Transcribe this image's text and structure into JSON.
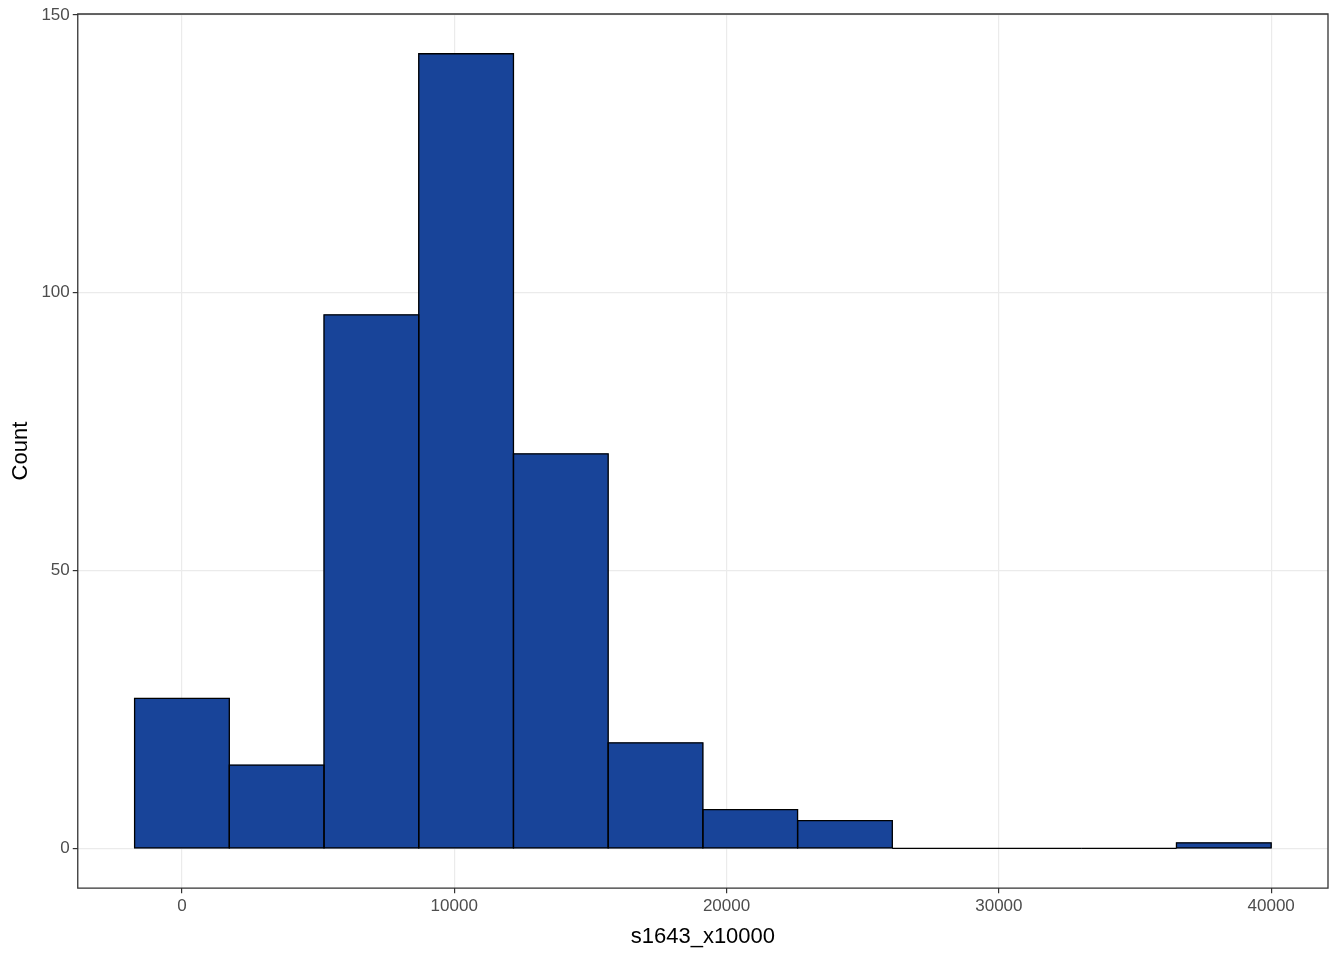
{
  "chart_data": {
    "type": "histogram",
    "xlabel": "s1643_x10000",
    "ylabel": "Count",
    "bins": [
      -1739,
      1739,
      5217,
      8696,
      12174,
      15652,
      19130,
      22609,
      26087,
      29565,
      33043,
      36522,
      40000
    ],
    "values": [
      27,
      15,
      96,
      143,
      71,
      19,
      7,
      5,
      0,
      0,
      0,
      1
    ],
    "color": "#184499",
    "xlim": [
      -3826,
      42087
    ],
    "xticks": [
      0,
      10000,
      20000,
      30000,
      40000
    ],
    "ylim": [
      -7.15,
      150.15
    ],
    "yticks": [
      0,
      50,
      100,
      150
    ],
    "grid": true,
    "legend": false
  }
}
